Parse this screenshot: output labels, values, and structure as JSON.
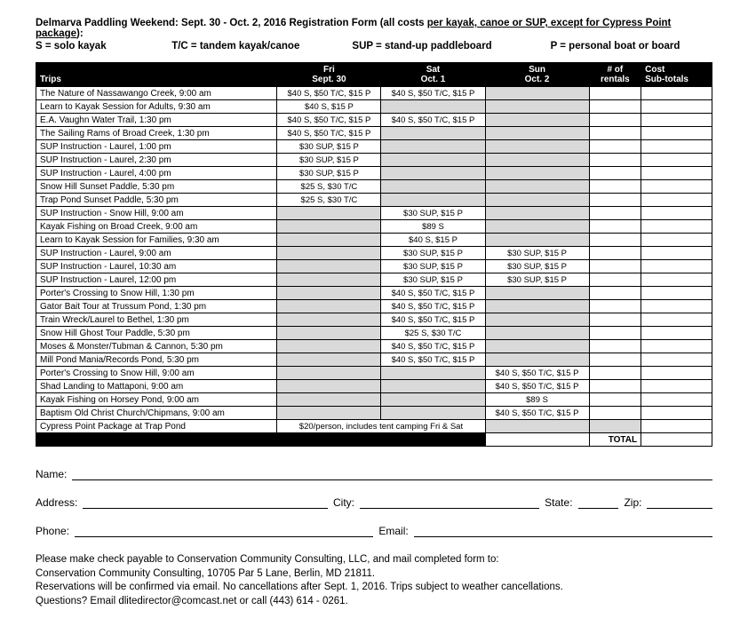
{
  "header": {
    "titleLine": "Delmarva Paddling Weekend: Sept. 30 - Oct. 2, 2016 Registration Form (all costs ",
    "titleUnderlined": "per kayak, canoe or SUP, except for Cypress Point package",
    "titleEnd": "):",
    "legend": {
      "s": "S = solo kayak",
      "tc": "T/C = tandem kayak/canoe",
      "sup": "SUP = stand-up paddleboard",
      "p": "P = personal boat or board"
    }
  },
  "columns": {
    "trips": "Trips",
    "fri1": "Fri",
    "fri2": "Sept. 30",
    "sat1": "Sat",
    "sat2": "Oct. 1",
    "sun1": "Sun",
    "sun2": "Oct. 2",
    "rentals1": "# of",
    "rentals2": "rentals",
    "cost1": "Cost",
    "cost2": "Sub-totals"
  },
  "rows": [
    {
      "name": "The Nature of Nassawango Creek, 9:00 am",
      "fri": "$40 S, $50 T/C, $15 P",
      "sat": "$40 S, $50 T/C, $15 P",
      "sun": "",
      "tall": false,
      "shadeSat": false,
      "shadeSun": true
    },
    {
      "name": "Learn to Kayak Session for Adults, 9:30 am",
      "fri": "$40 S, $15 P",
      "sat": "",
      "sun": "",
      "tall": false,
      "shadeSat": true,
      "shadeSun": true
    },
    {
      "name": "E.A. Vaughn Water Trail, 1:30 pm",
      "fri": "$40 S, $50 T/C, $15 P",
      "sat": "$40 S, $50 T/C, $15 P",
      "sun": "",
      "tall": false,
      "shadeSat": false,
      "shadeSun": true
    },
    {
      "name": "The Sailing Rams of Broad Creek, 1:30 pm",
      "fri": "$40 S, $50 T/C, $15 P",
      "sat": "",
      "sun": "",
      "tall": false,
      "shadeSat": true,
      "shadeSun": true
    },
    {
      "name": "SUP Instruction - Laurel, 1:00 pm",
      "fri": "$30 SUP, $15 P",
      "sat": "",
      "sun": "",
      "tall": false,
      "shadeSat": true,
      "shadeSun": true
    },
    {
      "name": "SUP Instruction - Laurel, 2:30 pm",
      "fri": "$30 SUP, $15 P",
      "sat": "",
      "sun": "",
      "tall": false,
      "shadeSat": true,
      "shadeSun": true
    },
    {
      "name": "SUP Instruction - Laurel, 4:00 pm",
      "fri": "$30 SUP, $15 P",
      "sat": "",
      "sun": "",
      "tall": false,
      "shadeSat": true,
      "shadeSun": true
    },
    {
      "name": "Snow Hill Sunset Paddle, 5:30 pm",
      "fri": "$25 S, $30 T/C",
      "sat": "",
      "sun": "",
      "tall": false,
      "shadeSat": true,
      "shadeSun": true
    },
    {
      "name": "Trap Pond Sunset Paddle, 5:30 pm",
      "fri": "$25 S, $30 T/C",
      "sat": "",
      "sun": "",
      "tall": false,
      "shadeSat": true,
      "shadeSun": true
    },
    {
      "name": "SUP Instruction - Snow Hill, 9:00 am",
      "fri": "",
      "sat": "$30 SUP, $15 P",
      "sun": "",
      "tall": false,
      "shadeFri": true,
      "shadeSun": true
    },
    {
      "name": "Kayak Fishing on Broad Creek, 9:00 am",
      "fri": "",
      "sat": "$89 S",
      "sun": "",
      "tall": false,
      "shadeFri": true,
      "shadeSun": true
    },
    {
      "name": "Learn to Kayak Session for Families, 9:30 am",
      "fri": "",
      "sat": "$40 S, $15 P",
      "sun": "",
      "tall": false,
      "shadeFri": true,
      "shadeSun": true
    },
    {
      "name": "SUP Instruction - Laurel, 9:00 am",
      "fri": "",
      "sat": "$30 SUP, $15 P",
      "sun": "$30 SUP, $15 P",
      "tall": false,
      "shadeFri": true
    },
    {
      "name": "SUP Instruction - Laurel, 10:30 am",
      "fri": "",
      "sat": "$30 SUP, $15 P",
      "sun": "$30 SUP, $15 P",
      "tall": false,
      "shadeFri": true
    },
    {
      "name": "SUP Instruction - Laurel, 12:00 pm",
      "fri": "",
      "sat": "$30 SUP, $15 P",
      "sun": "$30 SUP, $15 P",
      "tall": false,
      "shadeFri": true
    },
    {
      "name": "Porter's Crossing to Snow Hill, 1:30 pm",
      "fri": "",
      "sat": "$40 S, $50 T/C, $15 P",
      "sun": "",
      "tall": true,
      "shadeFri": true,
      "shadeSun": true
    },
    {
      "name": "Gator Bait Tour at Trussum Pond, 1:30 pm",
      "fri": "",
      "sat": "$40 S, $50 T/C, $15 P",
      "sun": "",
      "tall": true,
      "shadeFri": true,
      "shadeSun": true
    },
    {
      "name": "Train Wreck/Laurel to Bethel, 1:30 pm",
      "fri": "",
      "sat": "$40 S, $50 T/C, $15 P",
      "sun": "",
      "tall": true,
      "shadeFri": true,
      "shadeSun": true
    },
    {
      "name": "Snow Hill Ghost Tour Paddle, 5:30 pm",
      "fri": "",
      "sat": "$25 S, $30 T/C",
      "sun": "",
      "tall": true,
      "shadeFri": true,
      "shadeSun": true
    },
    {
      "name": "Moses & Monster/Tubman & Cannon, 5:30 pm",
      "fri": "",
      "sat": "$40 S, $50 T/C, $15 P",
      "sun": "",
      "tall": true,
      "shadeFri": true,
      "shadeSun": true
    },
    {
      "name": "Mill Pond Mania/Records Pond, 5:30 pm",
      "fri": "",
      "sat": "$40 S, $50 T/C, $15 P",
      "sun": "",
      "tall": true,
      "shadeFri": true,
      "shadeSun": true
    },
    {
      "name": "Porter's Crossing to Snow Hill, 9:00 am",
      "fri": "",
      "sat": "",
      "sun": "$40 S, $50 T/C, $15 P",
      "tall": true,
      "shadeFri": true,
      "shadeSat": true
    },
    {
      "name": "Shad Landing to Mattaponi, 9:00 am",
      "fri": "",
      "sat": "",
      "sun": "$40 S, $50 T/C, $15 P",
      "tall": true,
      "shadeFri": true,
      "shadeSat": true
    },
    {
      "name": "Kayak Fishing on Horsey Pond, 9:00 am",
      "fri": "",
      "sat": "",
      "sun": "$89 S",
      "tall": true,
      "shadeFri": true,
      "shadeSat": true
    },
    {
      "name": "Baptism Old Christ Church/Chipmans, 9:00 am",
      "fri": "",
      "sat": "",
      "sun": "$40 S, $50 T/C, $15 P",
      "tall": true,
      "shadeFri": true,
      "shadeSat": true
    }
  ],
  "cypress": {
    "name": "Cypress Point Package at Trap Pond",
    "text": "$20/person, includes tent camping Fri & Sat"
  },
  "totalLabel": "TOTAL",
  "form": {
    "name": "Name:",
    "address": "Address:",
    "city": "City:",
    "state": "State:",
    "zip": "Zip:",
    "phone": "Phone:",
    "email": "Email:"
  },
  "instructions": {
    "l1": "Please make check payable to Conservation Community Consulting, LLC, and mail completed form to:",
    "l2": "Conservation Community Consulting, 10705 Par 5 Lane, Berlin, MD 21811.",
    "l3": "Reservations will be confirmed via email. No cancellations after Sept. 1, 2016. Trips subject to weather cancellations.",
    "l4": "Questions? Email dlitedirector@comcast.net or call (443) 614 - 0261."
  }
}
